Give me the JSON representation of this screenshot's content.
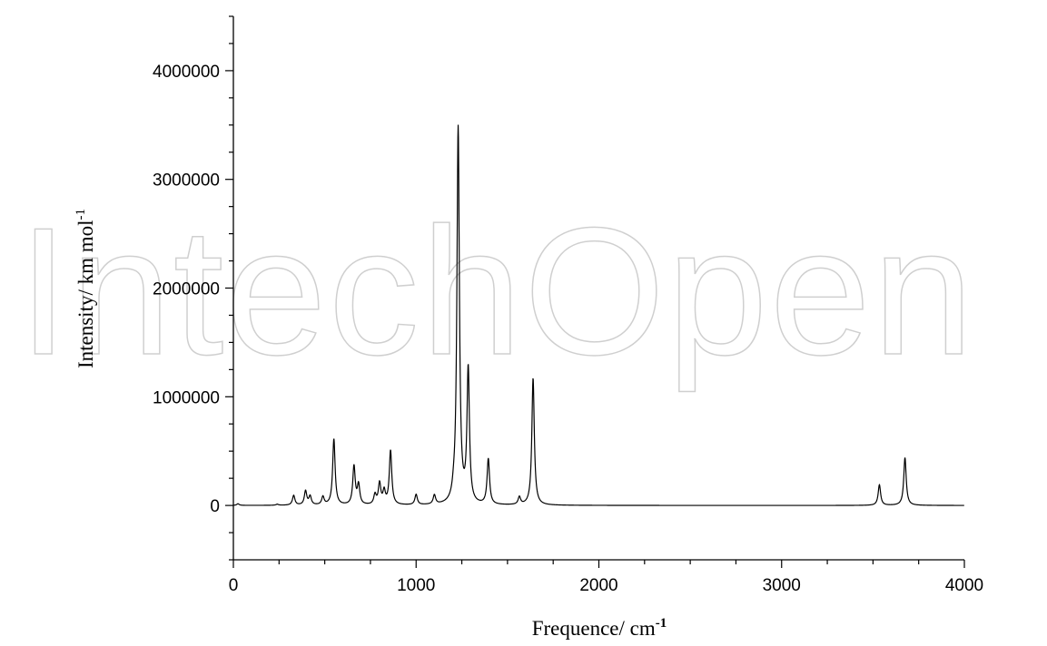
{
  "watermark": "IntechOpen",
  "chart_data": {
    "type": "line",
    "title": "",
    "xlabel": "Frequence/ cm",
    "xlabel_sup": "-1",
    "ylabel": "Intensity/ km mol",
    "ylabel_sup": "-1",
    "xlim": [
      0,
      4000
    ],
    "ylim": [
      -500000,
      4500000
    ],
    "x_ticks": [
      0,
      1000,
      2000,
      3000,
      4000
    ],
    "x_tick_labels": [
      "0",
      "1000",
      "2000",
      "3000",
      "4000"
    ],
    "y_ticks": [
      0,
      1000000,
      2000000,
      3000000,
      4000000
    ],
    "y_tick_labels": [
      "0",
      "1000000",
      "2000000",
      "3000000",
      "4000000"
    ],
    "grid": false,
    "legend": "none",
    "line_color": "#000000",
    "peak_halfwidth_cm-1": 8,
    "series": [
      {
        "peaks": [
          [
            25,
            15000
          ],
          [
            240,
            10000
          ],
          [
            330,
            90000
          ],
          [
            395,
            130000
          ],
          [
            420,
            80000
          ],
          [
            490,
            75000
          ],
          [
            550,
            610000
          ],
          [
            660,
            355000
          ],
          [
            685,
            180000
          ],
          [
            775,
            90000
          ],
          [
            800,
            195000
          ],
          [
            825,
            120000
          ],
          [
            860,
            500000
          ],
          [
            1000,
            95000
          ],
          [
            1100,
            85000
          ],
          [
            1205,
            50000
          ],
          [
            1230,
            3470000
          ],
          [
            1285,
            1230000
          ],
          [
            1395,
            420000
          ],
          [
            1565,
            70000
          ],
          [
            1640,
            1170000
          ],
          [
            3535,
            190000
          ],
          [
            3675,
            440000
          ]
        ]
      }
    ]
  }
}
